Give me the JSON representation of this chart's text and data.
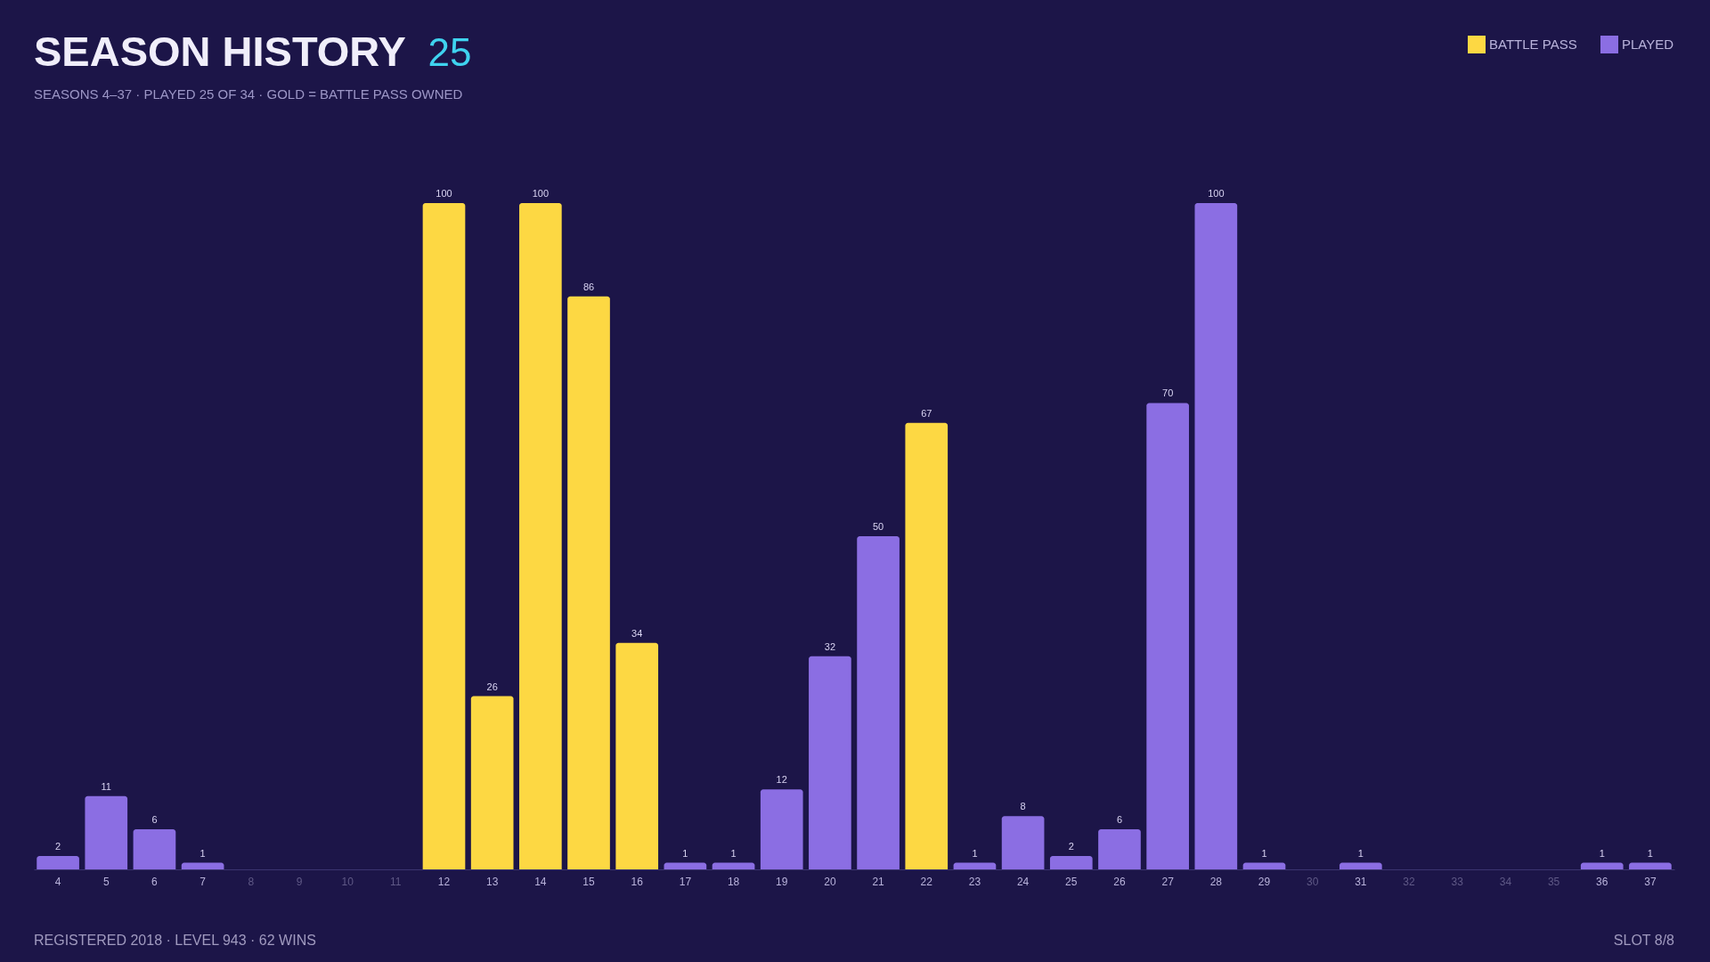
{
  "chart_data": {
    "type": "bar",
    "title": "SEASON HISTORY",
    "subtitle": "SEASONS 4–37 · PLAYED 25 OF 34 · GOLD = BATTLE PASS OWNED",
    "annotations": [
      "25",
      "REGISTERED 2018 · LEVEL 943 · 62 WINS",
      "SLOT 8/8"
    ],
    "categories": [
      "4",
      "5",
      "6",
      "7",
      "8",
      "9",
      "10",
      "11",
      "12",
      "13",
      "14",
      "15",
      "16",
      "17",
      "18",
      "19",
      "20",
      "21",
      "22",
      "23",
      "24",
      "25",
      "26",
      "27",
      "28",
      "29",
      "30",
      "31",
      "32",
      "33",
      "34",
      "35",
      "36",
      "37"
    ],
    "series": [
      {
        "name": "BATTLE PASS",
        "color": "#fdd843",
        "values": [
          null,
          null,
          null,
          null,
          null,
          null,
          null,
          null,
          100,
          26,
          100,
          86,
          34,
          null,
          null,
          null,
          null,
          null,
          67,
          null,
          null,
          null,
          null,
          null,
          null,
          null,
          null,
          null,
          null,
          null,
          null,
          null,
          null,
          null
        ]
      },
      {
        "name": "PLAYED",
        "color": "#8b6ee3",
        "values": [
          2,
          11,
          6,
          1,
          null,
          null,
          null,
          null,
          null,
          null,
          null,
          null,
          null,
          1,
          1,
          12,
          32,
          50,
          null,
          1,
          8,
          2,
          6,
          70,
          100,
          1,
          null,
          1,
          null,
          null,
          null,
          null,
          1,
          1
        ]
      }
    ],
    "data_labels": true,
    "legend": "top right",
    "tick_labels": "x"
  }
}
